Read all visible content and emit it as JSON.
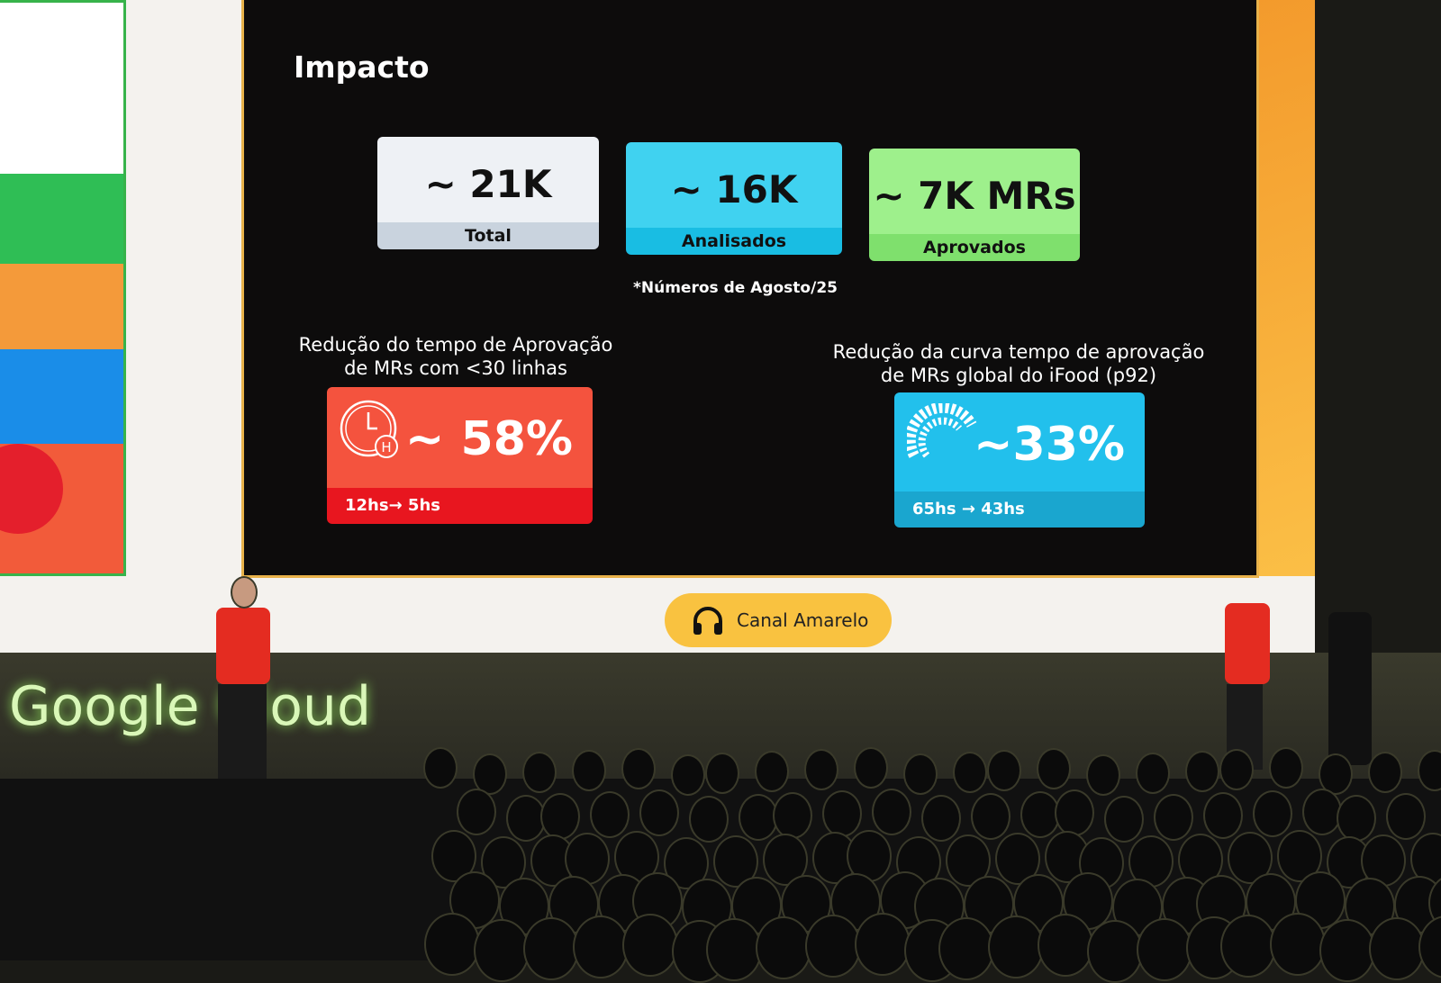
{
  "slide": {
    "title": "Impacto",
    "stats": [
      {
        "value": "~ 21K MRs",
        "label": "Total",
        "color": "#eef1f5",
        "label_color": "#c9d3de"
      },
      {
        "value": "~ 16K MRs",
        "label": "Analisados",
        "color": "#40d2f0",
        "label_color": "#19bde3"
      },
      {
        "value": "~ 7K MRs",
        "label": "Aprovados",
        "color": "#9ef08c",
        "label_color": "#7fe06d"
      }
    ],
    "note": "*Números de Agosto/25",
    "left_caption_1": "Redução do tempo de Aprovação",
    "left_caption_2": "de MRs com <30 linhas",
    "left_card": {
      "value": "~ 58%",
      "detail": "12hs→ 5hs",
      "icon": "clock-icon",
      "color": "#f4533e"
    },
    "right_caption_1": "Redução da curva tempo de aprovação",
    "right_caption_2": "de MRs global do iFood (p92)",
    "right_card": {
      "value": "~33%",
      "detail": "65hs → 43hs",
      "icon": "dotted-globe-icon",
      "color": "#22c0ec"
    }
  },
  "channel_badge": {
    "label": "Canal Amarelo",
    "icon": "headphones-icon"
  },
  "stage_logo": "Google Cloud"
}
